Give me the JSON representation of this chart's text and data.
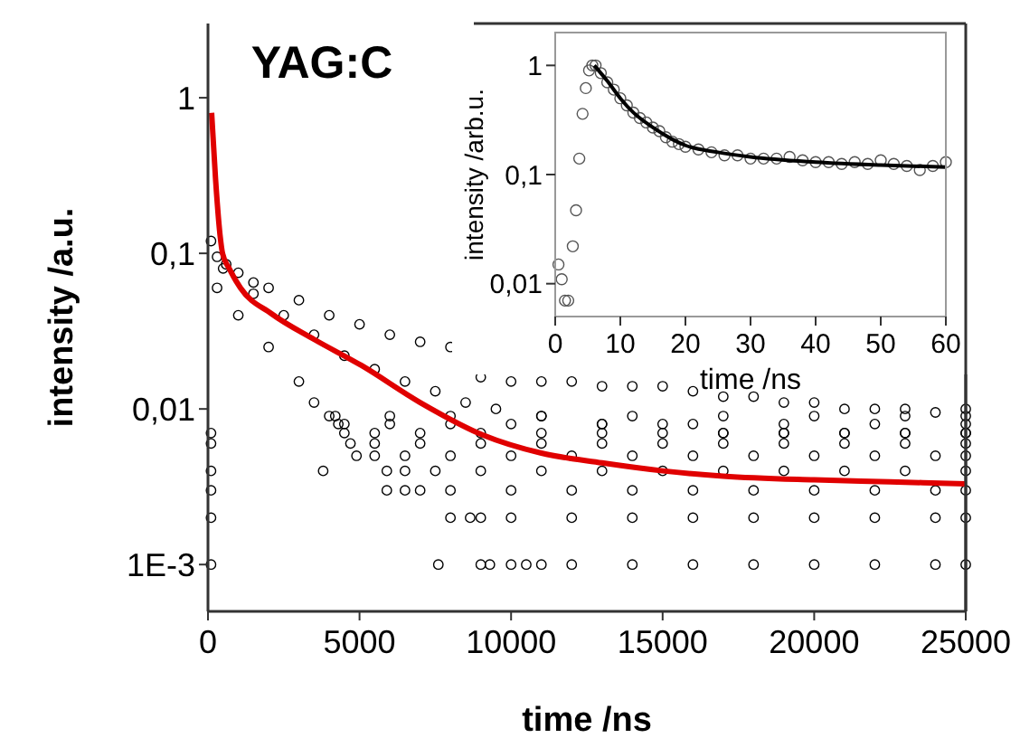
{
  "chart_data": [
    {
      "type": "scatter",
      "title": "YAG:C",
      "xlabel": "time /ns",
      "ylabel": "intensity /a.u.",
      "log": "y",
      "grid": false,
      "xlim": [
        0,
        25000
      ],
      "ylim": [
        0.0005,
        3
      ],
      "xticks": [
        0,
        5000,
        10000,
        15000,
        20000,
        25000
      ],
      "yticks": [
        {
          "value": 0.001,
          "label": "1E-3"
        },
        {
          "value": 0.01,
          "label": "0,01"
        },
        {
          "value": 0.1,
          "label": "0,1"
        },
        {
          "value": 1,
          "label": "1"
        }
      ],
      "series": [
        {
          "color": "#000000",
          "marker": "circle",
          "x": [
            100,
            300,
            600,
            1000,
            1500,
            2000,
            3000,
            4000,
            5000,
            6000,
            7000,
            8000,
            9000,
            10000,
            11000,
            12000,
            13000,
            14000,
            15000,
            16000,
            17000,
            18000,
            19000,
            20000,
            21000,
            22000,
            23000,
            24000,
            25000,
            300,
            1000,
            2000,
            3000,
            3500,
            4000,
            4500,
            500,
            1500,
            2500,
            3500,
            4500,
            5500,
            6500,
            7500,
            8500,
            9500,
            11000,
            13000,
            15000,
            17000,
            19000,
            21000,
            23000,
            25000,
            100,
            7600,
            9000,
            9300,
            10000,
            10500,
            11000,
            12000,
            14000,
            16000,
            18000,
            20000,
            22000,
            24000,
            25000,
            100,
            8000,
            8650,
            9000,
            10000,
            12000,
            14000,
            16000,
            18000,
            20000,
            22000,
            24000,
            25000,
            100,
            5900,
            6500,
            7000,
            8000,
            10000,
            12000,
            14000,
            16000,
            18000,
            20000,
            22000,
            24000,
            25000,
            100,
            3800,
            5900,
            6500,
            7500,
            9000,
            11000,
            13000,
            15000,
            17000,
            19000,
            21000,
            23000,
            25000,
            4900,
            5500,
            6500,
            8000,
            10000,
            12000,
            14000,
            16000,
            18000,
            20000,
            22000,
            24000,
            25000,
            100,
            4700,
            5500,
            7000,
            9000,
            11000,
            13000,
            15000,
            17000,
            19000,
            21000,
            23000,
            25000,
            100,
            4500,
            5500,
            7000,
            9000,
            11000,
            13000,
            15000,
            17000,
            19000,
            21000,
            23000,
            25000,
            4300,
            6000,
            8000,
            10000,
            13000,
            16000,
            19000,
            22000,
            25000,
            4200,
            6000,
            8000,
            11000,
            14000,
            17000,
            20000,
            23000,
            25000
          ],
          "values": [
            0.12,
            0.095,
            0.085,
            0.075,
            0.065,
            0.06,
            0.05,
            0.04,
            0.035,
            0.03,
            0.027,
            0.025,
            0.016,
            0.015,
            0.015,
            0.015,
            0.014,
            0.014,
            0.014,
            0.013,
            0.012,
            0.012,
            0.011,
            0.011,
            0.01,
            0.01,
            0.01,
            0.0095,
            0.01,
            0.06,
            0.04,
            0.025,
            0.015,
            0.011,
            0.009,
            0.008,
            0.08,
            0.055,
            0.04,
            0.03,
            0.022,
            0.018,
            0.015,
            0.013,
            0.011,
            0.01,
            0.009,
            0.008,
            0.008,
            0.007,
            0.007,
            0.007,
            0.007,
            0.007,
            0.001,
            0.001,
            0.001,
            0.001,
            0.001,
            0.001,
            0.001,
            0.001,
            0.001,
            0.001,
            0.001,
            0.001,
            0.001,
            0.001,
            0.001,
            0.002,
            0.002,
            0.002,
            0.002,
            0.002,
            0.002,
            0.002,
            0.002,
            0.002,
            0.002,
            0.002,
            0.002,
            0.002,
            0.003,
            0.003,
            0.003,
            0.003,
            0.003,
            0.003,
            0.003,
            0.003,
            0.003,
            0.003,
            0.003,
            0.003,
            0.003,
            0.003,
            0.004,
            0.004,
            0.004,
            0.004,
            0.004,
            0.004,
            0.004,
            0.004,
            0.004,
            0.004,
            0.004,
            0.004,
            0.004,
            0.004,
            0.005,
            0.005,
            0.005,
            0.005,
            0.005,
            0.005,
            0.005,
            0.005,
            0.005,
            0.005,
            0.005,
            0.005,
            0.005,
            0.006,
            0.006,
            0.006,
            0.006,
            0.006,
            0.006,
            0.006,
            0.006,
            0.006,
            0.006,
            0.006,
            0.006,
            0.006,
            0.007,
            0.007,
            0.007,
            0.007,
            0.007,
            0.007,
            0.007,
            0.007,
            0.007,
            0.007,
            0.007,
            0.007,
            0.007,
            0.008,
            0.008,
            0.008,
            0.008,
            0.008,
            0.008,
            0.008,
            0.008,
            0.008,
            0.009,
            0.009,
            0.009,
            0.009,
            0.009,
            0.009,
            0.009,
            0.009,
            0.009
          ]
        },
        {
          "type": "line",
          "marker": "none",
          "color": "#e00000",
          "x": [
            120,
            250,
            400,
            480,
            700,
            1070,
            2090,
            3500,
            5070,
            7000,
            9070,
            11000,
            13000,
            15000,
            17000,
            20000,
            22500,
            25000
          ],
          "values": [
            0.8,
            0.3,
            0.13,
            0.1,
            0.08,
            0.06,
            0.041,
            0.028,
            0.019,
            0.011,
            0.0068,
            0.0052,
            0.0045,
            0.004,
            0.0037,
            0.0035,
            0.0034,
            0.0033
          ]
        }
      ]
    },
    {
      "type": "scatter",
      "xlabel": "time /ns",
      "ylabel": "intensity /arb.u.",
      "log": "y",
      "grid": false,
      "xlim": [
        0,
        60
      ],
      "ylim": [
        0.005,
        2
      ],
      "xticks": [
        0,
        10,
        20,
        30,
        40,
        50,
        60
      ],
      "yticks": [
        {
          "value": 0.01,
          "label": "0,01"
        },
        {
          "value": 0.1,
          "label": "0,1"
        },
        {
          "value": 1,
          "label": "1"
        }
      ],
      "series": [
        {
          "color": "#555555",
          "marker": "circle",
          "x": [
            0.5,
            1,
            1.5,
            2,
            2.7,
            3.2,
            3.7,
            4.2,
            4.7,
            5.2,
            5.7,
            6.2,
            7,
            8,
            9,
            10,
            11,
            12,
            13,
            14,
            15,
            16,
            17,
            18,
            19,
            20,
            22,
            24,
            26,
            28,
            30,
            32,
            34,
            36,
            38,
            40,
            42,
            44,
            46,
            48,
            50,
            52,
            54,
            56,
            58,
            60
          ],
          "values": [
            0.015,
            0.011,
            0.007,
            0.007,
            0.022,
            0.047,
            0.14,
            0.36,
            0.62,
            0.9,
            1,
            1,
            0.85,
            0.7,
            0.6,
            0.5,
            0.43,
            0.37,
            0.33,
            0.3,
            0.27,
            0.25,
            0.22,
            0.2,
            0.19,
            0.18,
            0.17,
            0.16,
            0.15,
            0.15,
            0.14,
            0.14,
            0.14,
            0.145,
            0.135,
            0.13,
            0.13,
            0.125,
            0.13,
            0.125,
            0.135,
            0.125,
            0.12,
            0.11,
            0.12,
            0.13
          ]
        },
        {
          "type": "line",
          "marker": "none",
          "color": "#000000",
          "x": [
            6,
            8,
            10,
            12,
            15,
            18,
            20,
            25,
            30,
            40,
            50,
            60
          ],
          "values": [
            1,
            0.72,
            0.5,
            0.37,
            0.27,
            0.21,
            0.185,
            0.16,
            0.145,
            0.13,
            0.122,
            0.117
          ]
        }
      ]
    }
  ]
}
